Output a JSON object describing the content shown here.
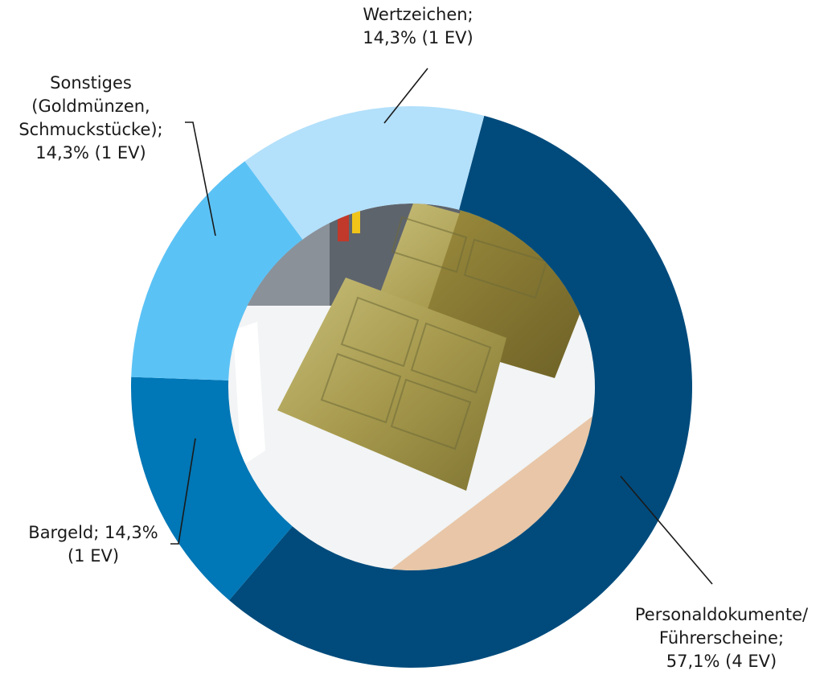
{
  "chart_data": {
    "type": "pie",
    "donut": true,
    "center_image": "photo-of-counterfeit-printing-plates",
    "slices": [
      {
        "lines": [
          "Personaldokumente/",
          "Führerscheine;",
          "57,1% (4 EV)"
        ],
        "value": 57.1,
        "color": "#004b7c"
      },
      {
        "lines": [
          "Bargeld; 14,3%",
          "(1 EV)"
        ],
        "value": 14.3,
        "color": "#0077b6"
      },
      {
        "lines": [
          "Sonstiges",
          "(Goldmünzen,",
          "Schmuckstücke);",
          "14,3% (1 EV)"
        ],
        "value": 14.3,
        "color": "#5bc2f5"
      },
      {
        "lines": [
          "Wertzeichen;",
          "14,3% (1 EV)"
        ],
        "value": 14.3,
        "color": "#b3e0fb"
      }
    ]
  }
}
